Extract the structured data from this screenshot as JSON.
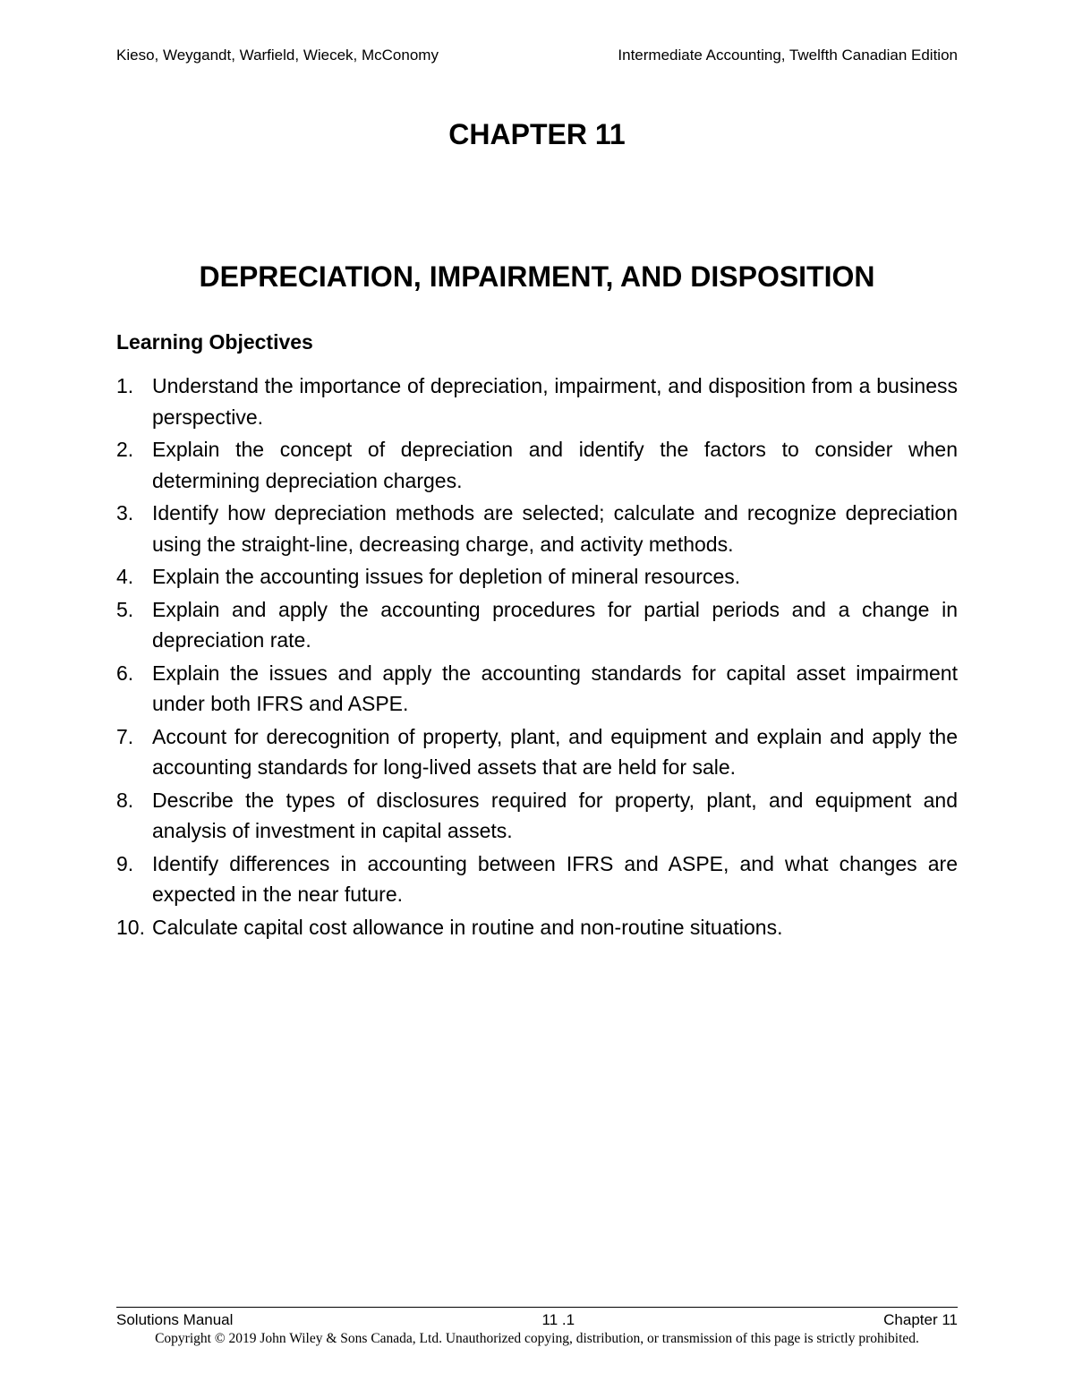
{
  "header": {
    "left": "Kieso, Weygandt, Warfield, Wiecek, McConomy",
    "right": "Intermediate Accounting, Twelfth Canadian Edition"
  },
  "chapter_label": "CHAPTER 11",
  "chapter_title": "DEPRECIATION, IMPAIRMENT, AND DISPOSITION",
  "section_heading": "Learning Objectives",
  "objectives": [
    "Understand the importance of depreciation, impairment, and disposition from a business perspective.",
    "Explain the concept of depreciation and identify the factors to consider when determining depreciation charges.",
    "Identify how depreciation methods are selected; calculate and recognize depreciation using the straight-line, decreasing charge, and activity methods.",
    "Explain the accounting issues for depletion of mineral resources.",
    "Explain and apply the accounting procedures for partial periods and a change in depreciation rate.",
    "Explain the issues and apply the accounting standards for capital asset impairment under both IFRS and ASPE.",
    "Account for derecognition of property, plant, and equipment and explain and apply the accounting standards for long-lived assets that are held for sale.",
    "Describe the types of disclosures required for property, plant, and equipment and analysis of investment in capital assets.",
    "Identify differences in accounting between IFRS and ASPE, and what changes are expected in the near future.",
    "Calculate capital cost allowance in routine and non-routine situations."
  ],
  "footer": {
    "left": "Solutions Manual",
    "center": "11 .1",
    "right": "Chapter 11",
    "copyright": "Copyright © 2019 John Wiley & Sons Canada, Ltd.  Unauthorized copying, distribution, or transmission of this page is strictly prohibited."
  }
}
